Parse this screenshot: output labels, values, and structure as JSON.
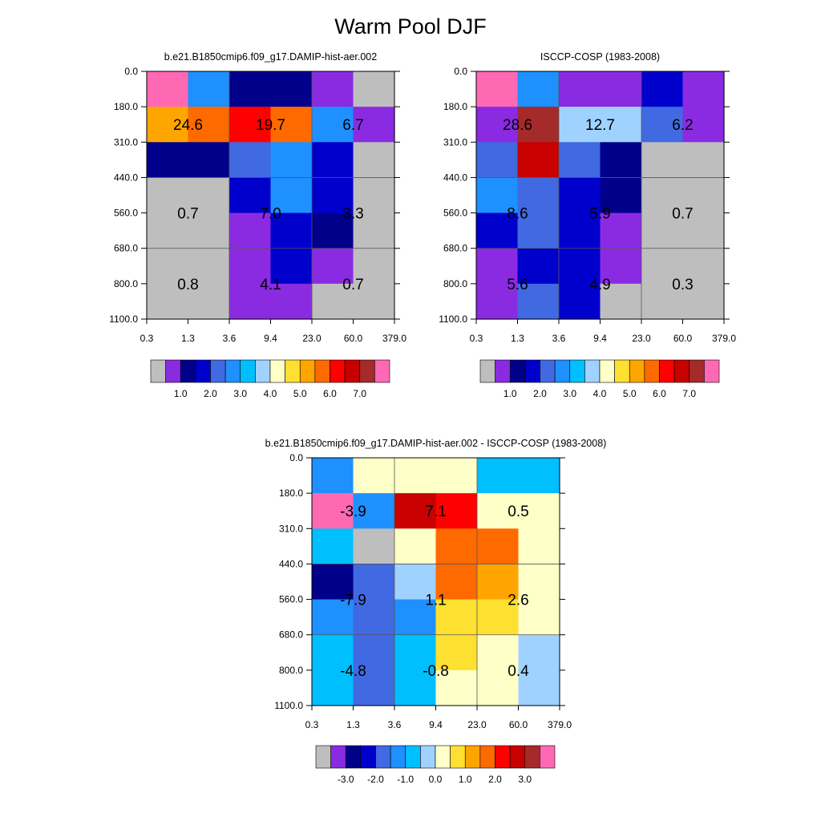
{
  "figure": {
    "title": "Warm Pool DJF"
  },
  "colormaps": {
    "abs": {
      "colors": [
        "#bebebe",
        "#8a2be2",
        "#00008b",
        "#0000cd",
        "#4169e1",
        "#1e90ff",
        "#00bfff",
        "#a0d2ff",
        "#ffffc8",
        "#fde030",
        "#ffa500",
        "#ff6a00",
        "#ff0000",
        "#c80000",
        "#a52a2a",
        "#ff69b4"
      ],
      "tick_labels": [
        "1.0",
        "2.0",
        "3.0",
        "4.0",
        "5.0",
        "6.0",
        "7.0"
      ]
    },
    "diff": {
      "colors": [
        "#bebebe",
        "#8a2be2",
        "#00008b",
        "#0000cd",
        "#4169e1",
        "#1e90ff",
        "#00bfff",
        "#a0d2ff",
        "#ffffc8",
        "#fde030",
        "#ffa500",
        "#ff6a00",
        "#ff0000",
        "#c80000",
        "#a52a2a",
        "#ff69b4"
      ],
      "tick_labels": [
        "-3.0",
        "-2.0",
        "-1.0",
        "0.0",
        "1.0",
        "2.0",
        "3.0"
      ]
    }
  },
  "chart_data": [
    {
      "type": "heatmap",
      "title": "b.e21.B1850cmip6.f09_g17.DAMIP-hist-aer.002",
      "colorbar": "abs",
      "x_ticks": [
        "0.3",
        "1.3",
        "3.6",
        "9.4",
        "23.0",
        "60.0",
        "379.0"
      ],
      "y_ticks": [
        "0.0",
        "180.0",
        "310.0",
        "440.0",
        "560.0",
        "680.0",
        "800.0",
        "1100.0"
      ],
      "cell_color_index": [
        [
          15,
          5,
          2,
          2,
          1,
          0
        ],
        [
          10,
          11,
          12,
          11,
          5,
          1
        ],
        [
          2,
          2,
          4,
          5,
          3,
          0
        ],
        [
          0,
          0,
          3,
          5,
          3,
          0
        ],
        [
          0,
          0,
          1,
          3,
          2,
          0
        ],
        [
          0,
          0,
          1,
          3,
          1,
          0
        ],
        [
          0,
          0,
          1,
          1,
          0,
          0
        ]
      ],
      "subtotals": [
        {
          "text": "24.6",
          "col_group": 0,
          "row_group": 0
        },
        {
          "text": "19.7",
          "col_group": 1,
          "row_group": 0
        },
        {
          "text": "6.7",
          "col_group": 2,
          "row_group": 0
        },
        {
          "text": "0.7",
          "col_group": 0,
          "row_group": 1
        },
        {
          "text": "7.0",
          "col_group": 1,
          "row_group": 1
        },
        {
          "text": "3.3",
          "col_group": 2,
          "row_group": 1
        },
        {
          "text": "0.8",
          "col_group": 0,
          "row_group": 2
        },
        {
          "text": "4.1",
          "col_group": 1,
          "row_group": 2
        },
        {
          "text": "0.7",
          "col_group": 2,
          "row_group": 2
        }
      ]
    },
    {
      "type": "heatmap",
      "title": "ISCCP-COSP (1983-2008)",
      "colorbar": "abs",
      "x_ticks": [
        "0.3",
        "1.3",
        "3.6",
        "9.4",
        "23.0",
        "60.0",
        "379.0"
      ],
      "y_ticks": [
        "0.0",
        "180.0",
        "310.0",
        "440.0",
        "560.0",
        "680.0",
        "800.0",
        "1100.0"
      ],
      "cell_color_index": [
        [
          15,
          5,
          1,
          1,
          3,
          1
        ],
        [
          1,
          14,
          7,
          7,
          4,
          1
        ],
        [
          4,
          13,
          4,
          2,
          0,
          0
        ],
        [
          5,
          4,
          3,
          2,
          0,
          0
        ],
        [
          3,
          4,
          3,
          1,
          0,
          0
        ],
        [
          1,
          3,
          3,
          1,
          0,
          0
        ],
        [
          1,
          4,
          3,
          0,
          0,
          0
        ]
      ],
      "subtotals": [
        {
          "text": "28.6",
          "col_group": 0,
          "row_group": 0
        },
        {
          "text": "12.7",
          "col_group": 1,
          "row_group": 0
        },
        {
          "text": "6.2",
          "col_group": 2,
          "row_group": 0
        },
        {
          "text": "8.6",
          "col_group": 0,
          "row_group": 1
        },
        {
          "text": "5.9",
          "col_group": 1,
          "row_group": 1
        },
        {
          "text": "0.7",
          "col_group": 2,
          "row_group": 1
        },
        {
          "text": "5.6",
          "col_group": 0,
          "row_group": 2
        },
        {
          "text": "4.9",
          "col_group": 1,
          "row_group": 2
        },
        {
          "text": "0.3",
          "col_group": 2,
          "row_group": 2
        }
      ]
    },
    {
      "type": "heatmap",
      "title": "b.e21.B1850cmip6.f09_g17.DAMIP-hist-aer.002 - ISCCP-COSP (1983-2008)",
      "colorbar": "diff",
      "x_ticks": [
        "0.3",
        "1.3",
        "3.6",
        "9.4",
        "23.0",
        "60.0",
        "379.0"
      ],
      "y_ticks": [
        "0.0",
        "180.0",
        "310.0",
        "440.0",
        "560.0",
        "680.0",
        "800.0",
        "1100.0"
      ],
      "cell_color_index": [
        [
          5,
          8,
          8,
          8,
          6,
          6
        ],
        [
          15,
          5,
          13,
          12,
          8,
          8
        ],
        [
          6,
          0,
          8,
          11,
          11,
          8
        ],
        [
          2,
          4,
          7,
          11,
          10,
          8
        ],
        [
          5,
          4,
          5,
          9,
          9,
          8
        ],
        [
          6,
          4,
          6,
          9,
          8,
          7
        ],
        [
          6,
          4,
          6,
          8,
          8,
          7
        ]
      ],
      "subtotals": [
        {
          "text": "-3.9",
          "col_group": 0,
          "row_group": 0
        },
        {
          "text": "7.1",
          "col_group": 1,
          "row_group": 0
        },
        {
          "text": "0.5",
          "col_group": 2,
          "row_group": 0
        },
        {
          "text": "-7.9",
          "col_group": 0,
          "row_group": 1
        },
        {
          "text": "1.1",
          "col_group": 1,
          "row_group": 1
        },
        {
          "text": "2.6",
          "col_group": 2,
          "row_group": 1
        },
        {
          "text": "-4.8",
          "col_group": 0,
          "row_group": 2
        },
        {
          "text": "-0.8",
          "col_group": 1,
          "row_group": 2
        },
        {
          "text": "0.4",
          "col_group": 2,
          "row_group": 2
        }
      ]
    }
  ]
}
